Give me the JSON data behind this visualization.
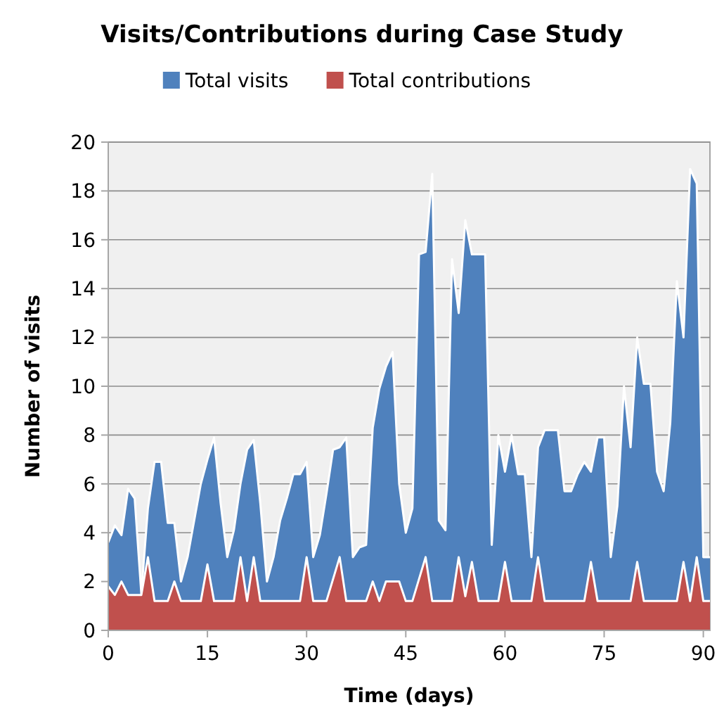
{
  "chart_data": {
    "type": "area",
    "title": "Visits/Contributions during Case Study",
    "xlabel": "Time (days)",
    "ylabel": "Number of visits",
    "x": [
      0,
      1,
      2,
      3,
      4,
      5,
      6,
      7,
      8,
      9,
      10,
      11,
      12,
      13,
      14,
      15,
      16,
      17,
      18,
      19,
      20,
      21,
      22,
      23,
      24,
      25,
      26,
      27,
      28,
      29,
      30,
      31,
      32,
      33,
      34,
      35,
      36,
      37,
      38,
      39,
      40,
      41,
      42,
      43,
      44,
      45,
      46,
      47,
      48,
      49,
      50,
      51,
      52,
      53,
      54,
      55,
      56,
      57,
      58,
      59,
      60,
      61,
      62,
      63,
      64,
      65,
      66,
      67,
      68,
      69,
      70,
      71,
      72,
      73,
      74,
      75,
      76,
      77,
      78,
      79,
      80,
      81,
      82,
      83,
      84,
      85,
      86,
      87,
      88,
      89,
      90,
      91
    ],
    "series": [
      {
        "name": "Total visits",
        "color": "#4f81bd",
        "values": [
          3.6,
          4.3,
          3.9,
          5.8,
          5.4,
          1.5,
          5.0,
          6.9,
          6.9,
          4.4,
          4.4,
          2.0,
          3.0,
          4.5,
          6.0,
          7.0,
          7.9,
          5.2,
          3.0,
          4.1,
          6.0,
          7.4,
          7.8,
          5.2,
          2.0,
          3.0,
          4.5,
          5.4,
          6.4,
          6.4,
          6.9,
          3.0,
          3.9,
          5.6,
          7.4,
          7.5,
          7.9,
          3.0,
          3.4,
          3.5,
          8.3,
          9.9,
          10.8,
          11.4,
          6.0,
          4.0,
          5.0,
          15.4,
          15.5,
          18.7,
          4.5,
          4.1,
          15.2,
          13.0,
          16.8,
          15.4,
          15.4,
          15.4,
          3.5,
          8.0,
          6.5,
          8.0,
          6.4,
          6.4,
          3.0,
          7.5,
          8.2,
          8.2,
          8.2,
          5.7,
          5.7,
          6.4,
          6.9,
          6.5,
          7.9,
          7.9,
          3.0,
          5.1,
          10.0,
          7.5,
          12.0,
          10.1,
          10.1,
          6.5,
          5.7,
          8.5,
          14.3,
          12.0,
          18.9,
          18.3,
          3.0,
          3.0
        ]
      },
      {
        "name": "Total contributions",
        "color": "#c0504d",
        "values": [
          1.8,
          1.45,
          2.0,
          1.45,
          1.45,
          1.45,
          3.0,
          1.2,
          1.2,
          1.2,
          2.0,
          1.2,
          1.2,
          1.2,
          1.2,
          2.7,
          1.2,
          1.2,
          1.2,
          1.2,
          3.0,
          1.2,
          3.0,
          1.2,
          1.2,
          1.2,
          1.2,
          1.2,
          1.2,
          1.2,
          3.0,
          1.2,
          1.2,
          1.2,
          2.1,
          3.0,
          1.2,
          1.2,
          1.2,
          1.2,
          2.0,
          1.2,
          2.0,
          2.0,
          2.0,
          1.2,
          1.2,
          2.1,
          3.0,
          1.2,
          1.2,
          1.2,
          1.2,
          3.0,
          1.4,
          2.8,
          1.2,
          1.2,
          1.2,
          1.2,
          2.8,
          1.2,
          1.2,
          1.2,
          1.2,
          3.0,
          1.2,
          1.2,
          1.2,
          1.2,
          1.2,
          1.2,
          1.2,
          2.8,
          1.2,
          1.2,
          1.2,
          1.2,
          1.2,
          1.2,
          2.8,
          1.2,
          1.2,
          1.2,
          1.2,
          1.2,
          1.2,
          2.8,
          1.2,
          3.0,
          1.2,
          1.2
        ]
      }
    ],
    "xlim": [
      0,
      91
    ],
    "xticks": [
      0,
      15,
      30,
      45,
      60,
      75,
      90
    ],
    "ylim": [
      0,
      20
    ],
    "yticks": [
      0,
      2,
      4,
      6,
      8,
      10,
      12,
      14,
      16,
      18,
      20
    ],
    "grid": "y",
    "legend": "top"
  }
}
